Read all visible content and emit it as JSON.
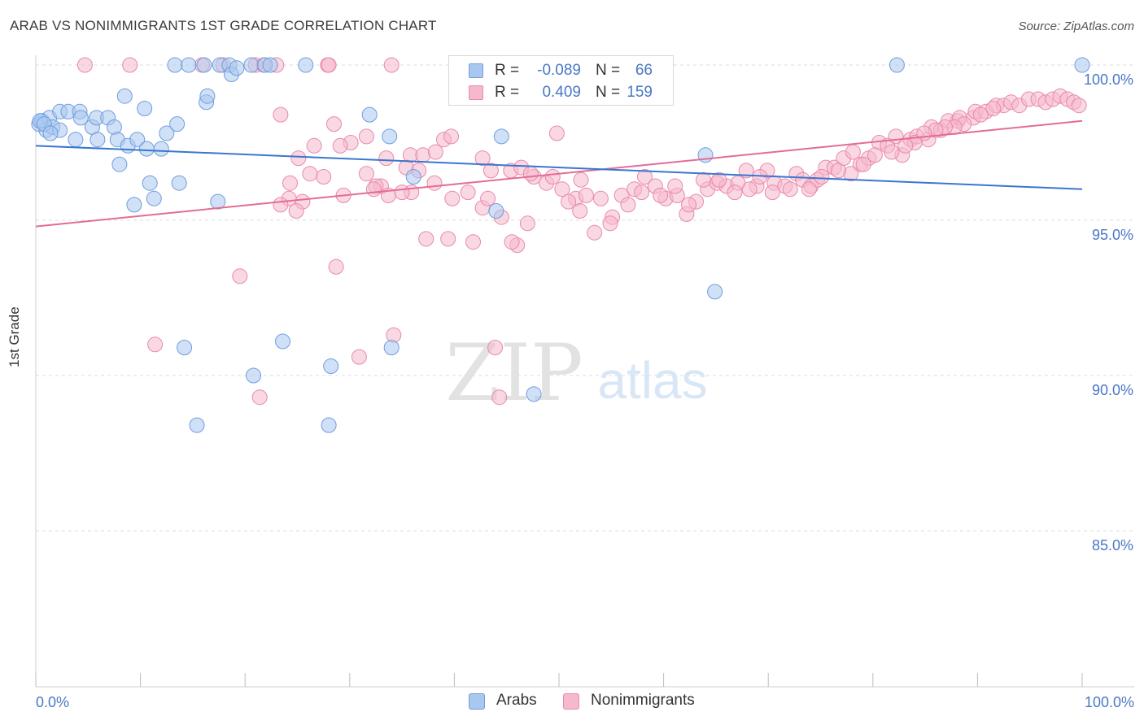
{
  "header": {
    "title": "ARAB VS NONIMMIGRANTS 1ST GRADE CORRELATION CHART",
    "source": "Source: ZipAtlas.com"
  },
  "watermark": {
    "zip": "ZIP",
    "atlas": "atlas"
  },
  "legend": {
    "rows": [
      {
        "r_label": "R =",
        "r_value": "-0.089",
        "n_label": "N =",
        "n_value": "66"
      },
      {
        "r_label": "R =",
        "r_value": "0.409",
        "n_label": "N =",
        "n_value": "159"
      }
    ]
  },
  "bottom_legend": {
    "arabs": "Arabs",
    "nonimmigrants": "Nonimmigrants"
  },
  "axis": {
    "y_title": "1st Grade",
    "x_min_label": "0.0%",
    "x_max_label": "100.0%"
  },
  "colors": {
    "blue_fill": "#a9c8f0",
    "blue_stroke": "#6f9ddc",
    "blue_line": "#3a76d0",
    "pink_fill": "#f5b8cc",
    "pink_stroke": "#e88aaa",
    "pink_line": "#e46c95",
    "axis_label": "#4a78c6"
  },
  "chart_data": {
    "type": "scatter",
    "title": "ARAB VS NONIMMIGRANTS 1ST GRADE CORRELATION CHART",
    "xlabel": "",
    "ylabel": "1st Grade",
    "xlim": [
      0,
      100
    ],
    "ylim": [
      80.5,
      100.5
    ],
    "y_ticks": [
      {
        "value": 100,
        "label": "100.0%"
      },
      {
        "value": 95,
        "label": "95.0%"
      },
      {
        "value": 90,
        "label": "90.0%"
      },
      {
        "value": 85,
        "label": "85.0%"
      }
    ],
    "x_ticks": [
      0,
      10,
      20,
      30,
      40,
      50,
      60,
      70,
      80,
      90,
      100
    ],
    "grid": true,
    "legend_position": "top-center",
    "series": [
      {
        "name": "Arabs",
        "r": -0.089,
        "n": 66,
        "trend": {
          "x": [
            0,
            100
          ],
          "y": [
            97.4,
            96.0
          ]
        },
        "points": [
          [
            0.3,
            98.1
          ],
          [
            0.6,
            98.2
          ],
          [
            1.0,
            97.9
          ],
          [
            1.3,
            98.3
          ],
          [
            1.6,
            98.0
          ],
          [
            2.3,
            97.9
          ],
          [
            2.3,
            98.5
          ],
          [
            3.1,
            98.5
          ],
          [
            4.2,
            98.5
          ],
          [
            4.3,
            98.3
          ],
          [
            3.8,
            97.6
          ],
          [
            5.4,
            98.0
          ],
          [
            5.8,
            98.3
          ],
          [
            5.9,
            97.6
          ],
          [
            6.9,
            98.3
          ],
          [
            7.5,
            98.0
          ],
          [
            7.8,
            97.6
          ],
          [
            8.5,
            99.0
          ],
          [
            8.8,
            97.4
          ],
          [
            9.7,
            97.6
          ],
          [
            10.4,
            98.6
          ],
          [
            10.6,
            97.3
          ],
          [
            12.0,
            97.3
          ],
          [
            12.5,
            97.8
          ],
          [
            13.5,
            98.1
          ],
          [
            8.0,
            96.8
          ],
          [
            10.9,
            96.2
          ],
          [
            11.3,
            95.7
          ],
          [
            13.7,
            96.2
          ],
          [
            9.4,
            95.5
          ],
          [
            17.4,
            95.6
          ],
          [
            16.3,
            98.8
          ],
          [
            16.4,
            99.0
          ],
          [
            13.3,
            100.0
          ],
          [
            14.6,
            100.0
          ],
          [
            16.1,
            100.0
          ],
          [
            17.6,
            100.0
          ],
          [
            18.5,
            100.0
          ],
          [
            18.7,
            99.7
          ],
          [
            19.2,
            99.9
          ],
          [
            20.6,
            100.0
          ],
          [
            21.9,
            100.0
          ],
          [
            22.4,
            100.0
          ],
          [
            25.8,
            100.0
          ],
          [
            47.1,
            100.0
          ],
          [
            60.2,
            100.0
          ],
          [
            82.3,
            100.0
          ],
          [
            100.0,
            100.0
          ],
          [
            31.9,
            98.4
          ],
          [
            33.8,
            97.7
          ],
          [
            36.1,
            96.4
          ],
          [
            44.5,
            97.7
          ],
          [
            44.0,
            95.3
          ],
          [
            64.0,
            97.1
          ],
          [
            64.9,
            92.7
          ],
          [
            14.2,
            90.9
          ],
          [
            23.6,
            91.1
          ],
          [
            15.4,
            88.4
          ],
          [
            20.8,
            90.0
          ],
          [
            28.2,
            90.3
          ],
          [
            34.0,
            90.9
          ],
          [
            28.0,
            88.4
          ],
          [
            47.6,
            89.4
          ],
          [
            0.4,
            98.2
          ],
          [
            0.8,
            98.1
          ],
          [
            1.4,
            97.8
          ]
        ]
      },
      {
        "name": "Nonimmigrants",
        "r": 0.409,
        "n": 159,
        "trend": {
          "x": [
            0,
            100
          ],
          "y": [
            94.8,
            98.2
          ]
        },
        "points": [
          [
            4.7,
            100.0
          ],
          [
            9.0,
            100.0
          ],
          [
            15.9,
            100.0
          ],
          [
            17.9,
            100.0
          ],
          [
            21.0,
            100.0
          ],
          [
            21.8,
            100.0
          ],
          [
            23.0,
            100.0
          ],
          [
            27.9,
            100.0
          ],
          [
            28.0,
            100.0
          ],
          [
            34.0,
            100.0
          ],
          [
            23.4,
            98.4
          ],
          [
            28.5,
            98.1
          ],
          [
            30.1,
            97.5
          ],
          [
            31.6,
            97.7
          ],
          [
            33.5,
            97.0
          ],
          [
            35.8,
            97.1
          ],
          [
            37.0,
            97.1
          ],
          [
            38.2,
            97.2
          ],
          [
            39.0,
            97.6
          ],
          [
            39.7,
            97.7
          ],
          [
            42.7,
            97.0
          ],
          [
            43.5,
            96.6
          ],
          [
            45.4,
            96.6
          ],
          [
            46.4,
            96.7
          ],
          [
            47.6,
            96.4
          ],
          [
            49.8,
            97.8
          ],
          [
            35.4,
            96.7
          ],
          [
            33.0,
            96.1
          ],
          [
            32.5,
            96.1
          ],
          [
            33.7,
            95.8
          ],
          [
            35.9,
            95.9
          ],
          [
            38.1,
            96.2
          ],
          [
            39.8,
            95.7
          ],
          [
            41.3,
            95.9
          ],
          [
            42.7,
            95.4
          ],
          [
            44.5,
            95.1
          ],
          [
            47.3,
            96.5
          ],
          [
            48.8,
            96.2
          ],
          [
            50.3,
            96.0
          ],
          [
            51.6,
            95.7
          ],
          [
            52.1,
            96.3
          ],
          [
            52.6,
            95.8
          ],
          [
            54.0,
            95.7
          ],
          [
            55.1,
            95.1
          ],
          [
            56.0,
            95.8
          ],
          [
            57.2,
            96.0
          ],
          [
            58.2,
            96.4
          ],
          [
            59.2,
            96.1
          ],
          [
            60.2,
            95.7
          ],
          [
            61.3,
            95.8
          ],
          [
            62.2,
            95.2
          ],
          [
            63.1,
            95.6
          ],
          [
            64.2,
            96.0
          ],
          [
            65.1,
            96.2
          ],
          [
            66.0,
            96.1
          ],
          [
            67.1,
            96.2
          ],
          [
            67.9,
            96.6
          ],
          [
            68.9,
            96.1
          ],
          [
            69.9,
            96.6
          ],
          [
            70.6,
            96.2
          ],
          [
            71.6,
            96.1
          ],
          [
            72.7,
            96.5
          ],
          [
            73.3,
            96.3
          ],
          [
            74.1,
            96.1
          ],
          [
            74.7,
            96.3
          ],
          [
            75.5,
            96.7
          ],
          [
            76.3,
            96.7
          ],
          [
            77.2,
            97.0
          ],
          [
            78.1,
            97.2
          ],
          [
            78.8,
            96.8
          ],
          [
            79.6,
            97.0
          ],
          [
            80.6,
            97.5
          ],
          [
            81.4,
            97.4
          ],
          [
            82.2,
            97.7
          ],
          [
            82.8,
            97.1
          ],
          [
            83.6,
            97.6
          ],
          [
            84.2,
            97.7
          ],
          [
            85.3,
            97.6
          ],
          [
            85.6,
            98.0
          ],
          [
            86.5,
            97.9
          ],
          [
            87.2,
            98.2
          ],
          [
            88.1,
            98.2
          ],
          [
            88.3,
            98.3
          ],
          [
            89.6,
            98.3
          ],
          [
            89.8,
            98.5
          ],
          [
            90.8,
            98.5
          ],
          [
            91.8,
            98.7
          ],
          [
            92.5,
            98.7
          ],
          [
            93.2,
            98.8
          ],
          [
            94.0,
            98.7
          ],
          [
            94.9,
            98.9
          ],
          [
            95.8,
            98.9
          ],
          [
            96.5,
            98.8
          ],
          [
            97.2,
            98.9
          ],
          [
            97.9,
            99.0
          ],
          [
            98.6,
            98.9
          ],
          [
            99.2,
            98.8
          ],
          [
            99.7,
            98.7
          ],
          [
            91.5,
            98.6
          ],
          [
            90.3,
            98.4
          ],
          [
            88.7,
            98.1
          ],
          [
            87.8,
            98.0
          ],
          [
            86.9,
            98.0
          ],
          [
            86.0,
            97.9
          ],
          [
            84.9,
            97.8
          ],
          [
            84.0,
            97.5
          ],
          [
            83.1,
            97.4
          ],
          [
            81.8,
            97.2
          ],
          [
            80.2,
            97.1
          ],
          [
            79.1,
            96.8
          ],
          [
            77.9,
            96.5
          ],
          [
            76.7,
            96.6
          ],
          [
            75.1,
            96.4
          ],
          [
            73.9,
            96.0
          ],
          [
            72.1,
            96.0
          ],
          [
            70.4,
            95.9
          ],
          [
            69.2,
            96.4
          ],
          [
            68.2,
            96.0
          ],
          [
            66.8,
            95.9
          ],
          [
            65.3,
            96.3
          ],
          [
            63.8,
            96.3
          ],
          [
            62.4,
            95.5
          ],
          [
            61.1,
            96.1
          ],
          [
            59.7,
            95.8
          ],
          [
            57.9,
            95.9
          ],
          [
            56.6,
            95.5
          ],
          [
            54.9,
            94.9
          ],
          [
            53.4,
            94.6
          ],
          [
            52.0,
            95.3
          ],
          [
            50.9,
            95.6
          ],
          [
            49.4,
            96.4
          ],
          [
            47.0,
            94.9
          ],
          [
            46.0,
            94.2
          ],
          [
            45.5,
            94.3
          ],
          [
            43.2,
            95.7
          ],
          [
            41.8,
            94.3
          ],
          [
            39.4,
            94.4
          ],
          [
            37.3,
            94.4
          ],
          [
            35.0,
            95.9
          ],
          [
            32.3,
            96.0
          ],
          [
            29.4,
            95.8
          ],
          [
            27.5,
            96.4
          ],
          [
            26.2,
            96.5
          ],
          [
            25.5,
            95.6
          ],
          [
            24.9,
            95.3
          ],
          [
            24.2,
            95.7
          ],
          [
            23.4,
            95.5
          ],
          [
            25.1,
            97.0
          ],
          [
            26.6,
            97.4
          ],
          [
            29.1,
            97.4
          ],
          [
            31.6,
            96.5
          ],
          [
            36.6,
            96.6
          ],
          [
            28.7,
            93.5
          ],
          [
            19.5,
            93.2
          ],
          [
            11.4,
            91.0
          ],
          [
            21.4,
            89.3
          ],
          [
            30.9,
            90.6
          ],
          [
            34.2,
            91.3
          ],
          [
            43.9,
            90.9
          ],
          [
            44.3,
            89.3
          ],
          [
            24.3,
            96.2
          ]
        ]
      }
    ]
  }
}
